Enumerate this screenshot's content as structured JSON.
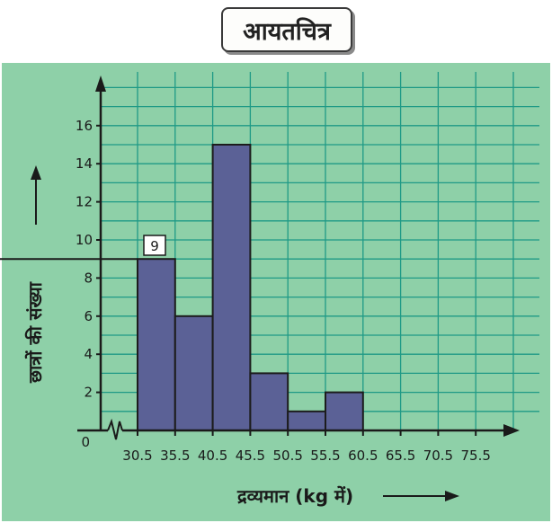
{
  "title": "आयतचित्र",
  "chart_data": {
    "type": "bar",
    "histogram": true,
    "categories": [
      "30.5-35.5",
      "35.5-40.5",
      "40.5-45.5",
      "45.5-50.5",
      "50.5-55.5",
      "55.5-60.5"
    ],
    "bins": [
      30.5,
      35.5,
      40.5,
      45.5,
      50.5,
      55.5,
      60.5
    ],
    "values": [
      9,
      6,
      15,
      3,
      1,
      2
    ],
    "x_tick_labels": [
      "30.5",
      "35.5",
      "40.5",
      "45.5",
      "50.5",
      "55.5",
      "60.5",
      "65.5",
      "70.5",
      "75.5"
    ],
    "y_ticks": [
      0,
      2,
      4,
      6,
      8,
      10,
      12,
      14,
      16
    ],
    "xlabel": "द्रव्यमान (kg में)",
    "ylabel": "छात्रों की संख्या",
    "ylim": [
      0,
      18
    ],
    "xlim": [
      30.5,
      75.5
    ],
    "grid": true,
    "axis_break": true,
    "annotation": {
      "value": "9",
      "level": 9
    },
    "colors": {
      "background": "#8ed0a8",
      "grid": "#1f9a86",
      "bar": "#5b6196",
      "bar_edge": "#1c1c1c"
    }
  }
}
